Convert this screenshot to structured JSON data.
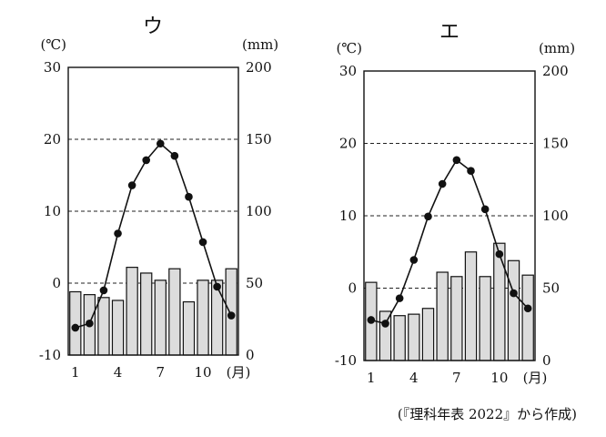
{
  "source_note": "(『理科年表 2022』から作成)",
  "chart_data": [
    {
      "type": "bar+line",
      "title": "ウ",
      "temp_unit": "(℃)",
      "precip_unit": "(mm)",
      "x_unit": "(月)",
      "months": [
        1,
        2,
        3,
        4,
        5,
        6,
        7,
        8,
        9,
        10,
        11,
        12
      ],
      "x_tick_labels": [
        "1",
        "4",
        "7",
        "10"
      ],
      "temp_ylim": [
        -10,
        30
      ],
      "temp_ticks": [
        "-10",
        "0",
        "10",
        "20",
        "30"
      ],
      "precip_ylim": [
        0,
        200
      ],
      "precip_ticks": [
        "0",
        "50",
        "100",
        "150",
        "200"
      ],
      "temperature": [
        -6.2,
        -5.6,
        -1.0,
        6.9,
        13.6,
        17.1,
        19.4,
        17.7,
        12.0,
        5.7,
        -0.5,
        -4.5
      ],
      "precipitation": [
        44,
        42,
        40,
        38,
        61,
        57,
        52,
        60,
        37,
        52,
        52,
        60
      ],
      "grid": "dashed at 0, 10, 20"
    },
    {
      "type": "bar+line",
      "title": "エ",
      "temp_unit": "(℃)",
      "precip_unit": "(mm)",
      "x_unit": "(月)",
      "months": [
        1,
        2,
        3,
        4,
        5,
        6,
        7,
        8,
        9,
        10,
        11,
        12
      ],
      "x_tick_labels": [
        "1",
        "4",
        "7",
        "10"
      ],
      "temp_ylim": [
        -10,
        30
      ],
      "temp_ticks": [
        "-10",
        "0",
        "10",
        "20",
        "30"
      ],
      "precip_ylim": [
        0,
        200
      ],
      "precip_ticks": [
        "0",
        "50",
        "100",
        "150",
        "200"
      ],
      "temperature": [
        -4.4,
        -4.9,
        -1.4,
        3.9,
        9.9,
        14.4,
        17.7,
        16.2,
        10.9,
        4.7,
        -0.7,
        -2.8
      ],
      "precipitation": [
        54,
        34,
        31,
        32,
        36,
        61,
        58,
        75,
        58,
        81,
        69,
        59
      ],
      "grid": "dashed at 0, 10, 20"
    }
  ]
}
